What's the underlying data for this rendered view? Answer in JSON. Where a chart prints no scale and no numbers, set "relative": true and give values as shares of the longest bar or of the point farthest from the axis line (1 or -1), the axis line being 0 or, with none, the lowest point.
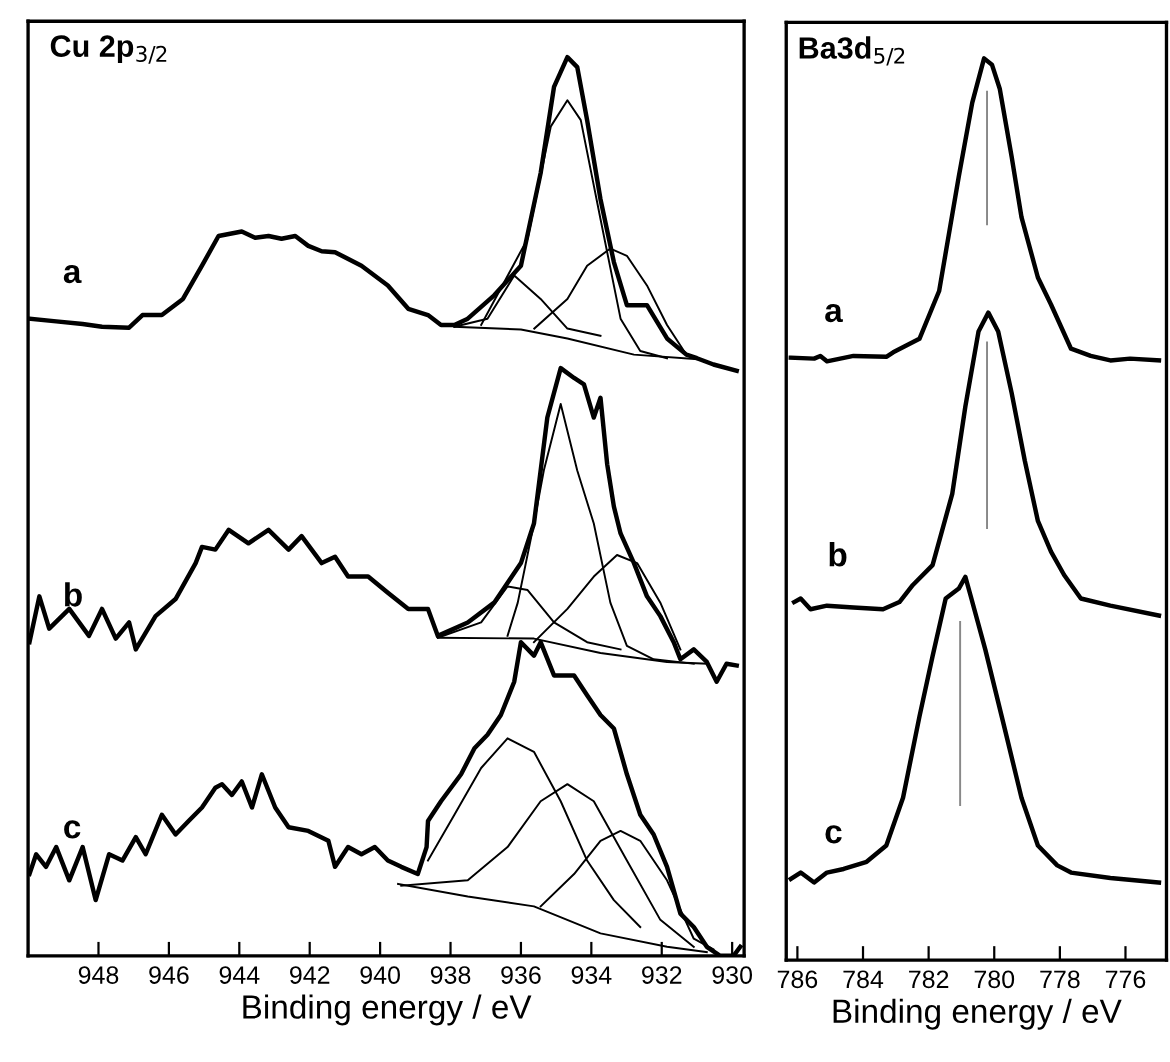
{
  "chart_data": [
    {
      "type": "line",
      "title": "Cu 2p$_{3/2}$",
      "xlabel": "Binding energy / eV",
      "relative": true,
      "xlim": [
        950,
        929.66
      ],
      "xticks": [
        948,
        946,
        944,
        942,
        940,
        938,
        936,
        934,
        932,
        930
      ],
      "tick_labels": "x",
      "grid": false,
      "legend": false,
      "marker": "none",
      "line_style": "solid",
      "series": [
        {
          "name": "a",
          "color": "#000000",
          "x": [
            949.96,
            949.2,
            948.45,
            947.9,
            947.13,
            946.75,
            946.2,
            945.6,
            945.06,
            944.59,
            943.93,
            943.55,
            943.17,
            942.8,
            942.41,
            942.04,
            941.66,
            941.28,
            940.53,
            939.78,
            939.2,
            938.64,
            938.27,
            937.89,
            937.51,
            936.76,
            936.0,
            935.44,
            935.06,
            934.68,
            934.4,
            934.12,
            933.74,
            933.36,
            932.99,
            932.42,
            931.85,
            931.3,
            931.0,
            930.53,
            929.87
          ],
          "values": [
            0.709,
            0.706,
            0.703,
            0.7,
            0.699,
            0.713,
            0.713,
            0.731,
            0.768,
            0.801,
            0.806,
            0.799,
            0.801,
            0.798,
            0.801,
            0.79,
            0.784,
            0.783,
            0.768,
            0.746,
            0.72,
            0.713,
            0.702,
            0.702,
            0.709,
            0.735,
            0.768,
            0.871,
            0.967,
            1.0,
            0.989,
            0.93,
            0.842,
            0.772,
            0.724,
            0.724,
            0.687,
            0.669,
            0.665,
            0.658,
            0.651
          ]
        },
        {
          "color": "#000000",
          "x": [
            937.89,
            936.0,
            934.68,
            932.79,
            931.0
          ],
          "values": [
            0.7,
            0.697,
            0.687,
            0.669,
            0.664
          ]
        },
        {
          "color": "#000000",
          "x": [
            937.89,
            936.95,
            936.19,
            935.44,
            934.68,
            933.74
          ],
          "values": [
            0.7,
            0.709,
            0.757,
            0.731,
            0.698,
            0.69
          ]
        },
        {
          "color": "#000000",
          "x": [
            937.13,
            935.81,
            935.15,
            934.68,
            934.3,
            933.74,
            933.17,
            932.61,
            931.85
          ],
          "values": [
            0.702,
            0.798,
            0.923,
            0.952,
            0.93,
            0.82,
            0.709,
            0.673,
            0.665
          ]
        },
        {
          "color": "#000000",
          "x": [
            935.62,
            934.68,
            934.12,
            933.46,
            932.99,
            932.42,
            931.85,
            931.3
          ],
          "values": [
            0.698,
            0.731,
            0.768,
            0.787,
            0.779,
            0.746,
            0.702,
            0.669
          ]
        },
        {
          "name": "b",
          "color": "#000000",
          "x": [
            949.96,
            949.68,
            949.4,
            948.83,
            948.27,
            947.9,
            947.51,
            947.13,
            946.94,
            946.38,
            945.81,
            945.24,
            945.06,
            944.68,
            944.3,
            943.74,
            943.17,
            942.6,
            942.23,
            941.66,
            941.28,
            940.91,
            940.34,
            939.78,
            939.2,
            938.64,
            938.36,
            937.51,
            936.76,
            936.0,
            935.63,
            935.25,
            934.87,
            934.49,
            934.21,
            933.93,
            933.74,
            933.55,
            933.36,
            933.17,
            932.79,
            932.42,
            932.04,
            931.66,
            931.47,
            931.09,
            930.72,
            930.44,
            930.16,
            929.87
          ],
          "values": [
            0.349,
            0.4,
            0.364,
            0.386,
            0.356,
            0.386,
            0.353,
            0.371,
            0.341,
            0.378,
            0.397,
            0.437,
            0.455,
            0.452,
            0.474,
            0.459,
            0.474,
            0.452,
            0.467,
            0.437,
            0.444,
            0.422,
            0.422,
            0.404,
            0.386,
            0.386,
            0.356,
            0.371,
            0.393,
            0.437,
            0.481,
            0.599,
            0.654,
            0.643,
            0.636,
            0.599,
            0.621,
            0.547,
            0.5,
            0.47,
            0.437,
            0.4,
            0.378,
            0.349,
            0.33,
            0.341,
            0.327,
            0.305,
            0.325,
            0.323
          ]
        },
        {
          "color": "#000000",
          "x": [
            938.36,
            935.63,
            933.74,
            931.85,
            930.72
          ],
          "values": [
            0.354,
            0.353,
            0.337,
            0.327,
            0.325
          ]
        },
        {
          "color": "#000000",
          "x": [
            938.36,
            937.13,
            936.38,
            935.81,
            935.06,
            934.12,
            933.17
          ],
          "values": [
            0.354,
            0.371,
            0.411,
            0.407,
            0.371,
            0.349,
            0.341
          ]
        },
        {
          "color": "#000000",
          "x": [
            936.38,
            936.09,
            935.63,
            935.35,
            934.87,
            934.4,
            933.93,
            933.46,
            932.99,
            932.23,
            931.09
          ],
          "values": [
            0.356,
            0.393,
            0.481,
            0.54,
            0.614,
            0.54,
            0.481,
            0.393,
            0.345,
            0.33,
            0.325
          ]
        },
        {
          "color": "#000000",
          "x": [
            935.63,
            934.68,
            933.93,
            933.27,
            932.7,
            932.04,
            931.47
          ],
          "values": [
            0.349,
            0.386,
            0.422,
            0.446,
            0.437,
            0.393,
            0.341
          ]
        },
        {
          "name": "c",
          "color": "#000000",
          "x": [
            949.96,
            949.77,
            949.49,
            949.2,
            948.83,
            948.45,
            948.08,
            947.7,
            947.32,
            946.94,
            946.66,
            946.2,
            945.81,
            945.44,
            945.06,
            944.68,
            944.49,
            944.21,
            943.93,
            943.64,
            943.36,
            942.98,
            942.6,
            942.04,
            941.47,
            941.28,
            940.91,
            940.53,
            940.15,
            939.78,
            939.4,
            938.93,
            938.68,
            938.64,
            938.27,
            937.7,
            937.32,
            936.95,
            936.57,
            936.19,
            936.0,
            935.63,
            935.44,
            935.06,
            934.49,
            934.12,
            933.74,
            933.36,
            932.99,
            932.61,
            932.23,
            931.85,
            931.47,
            931.09,
            930.72,
            930.34,
            929.96,
            929.77
          ],
          "values": [
            0.091,
            0.113,
            0.099,
            0.121,
            0.084,
            0.121,
            0.062,
            0.113,
            0.106,
            0.132,
            0.113,
            0.157,
            0.135,
            0.15,
            0.165,
            0.187,
            0.191,
            0.179,
            0.194,
            0.165,
            0.202,
            0.165,
            0.143,
            0.139,
            0.128,
            0.099,
            0.121,
            0.113,
            0.121,
            0.106,
            0.099,
            0.091,
            0.121,
            0.15,
            0.172,
            0.202,
            0.231,
            0.246,
            0.268,
            0.305,
            0.349,
            0.334,
            0.349,
            0.312,
            0.312,
            0.29,
            0.268,
            0.253,
            0.202,
            0.157,
            0.135,
            0.099,
            0.047,
            0.032,
            0.01,
            0.0,
            0.0,
            0.01
          ]
        },
        {
          "color": "#000000",
          "x": [
            939.49,
            937.51,
            935.63,
            933.74,
            931.85,
            930.72
          ],
          "values": [
            0.08,
            0.066,
            0.055,
            0.025,
            0.01,
            0.004
          ]
        },
        {
          "color": "#000000",
          "x": [
            938.64,
            937.89,
            937.13,
            936.38,
            935.63,
            934.87,
            934.12,
            933.36,
            932.61
          ],
          "values": [
            0.106,
            0.157,
            0.209,
            0.242,
            0.227,
            0.172,
            0.106,
            0.062,
            0.032
          ]
        },
        {
          "color": "#000000",
          "x": [
            939.4,
            937.51,
            936.38,
            935.44,
            934.68,
            933.93,
            932.99,
            932.04,
            931.09
          ],
          "values": [
            0.078,
            0.084,
            0.121,
            0.172,
            0.191,
            0.172,
            0.106,
            0.04,
            0.01
          ]
        },
        {
          "color": "#000000",
          "x": [
            935.44,
            934.49,
            933.74,
            933.17,
            932.61,
            931.85,
            931.09,
            930.53
          ],
          "values": [
            0.055,
            0.091,
            0.128,
            0.139,
            0.128,
            0.084,
            0.019,
            0.007
          ]
        }
      ]
    },
    {
      "type": "line",
      "title": "Ba3d$_{5/2}$",
      "xlabel": "Binding energy / eV",
      "relative": true,
      "xlim": [
        786.34,
        774.75
      ],
      "xticks": [
        786,
        784,
        782,
        780,
        778,
        776
      ],
      "tick_labels": "x",
      "grid": false,
      "legend": false,
      "marker": "none",
      "line_style": "solid",
      "series": [
        {
          "name": "a",
          "color": "#000000",
          "x": [
            786.2,
            785.49,
            785.3,
            785.1,
            784.29,
            783.29,
            783.08,
            782.28,
            781.68,
            781.08,
            780.67,
            780.31,
            780.07,
            779.83,
            779.47,
            779.17,
            778.67,
            778.27,
            777.66,
            777.06,
            776.46,
            775.86,
            774.98
          ],
          "values": [
            0.668,
            0.667,
            0.67,
            0.664,
            0.67,
            0.669,
            0.674,
            0.689,
            0.742,
            0.869,
            0.951,
            1.0,
            0.993,
            0.966,
            0.891,
            0.824,
            0.757,
            0.727,
            0.678,
            0.67,
            0.665,
            0.667,
            0.665
          ]
        },
        {
          "color": "#888888",
          "x": [
            780.22,
            780.22
          ],
          "values": [
            0.963,
            0.816
          ]
        },
        {
          "name": "b",
          "color": "#000000",
          "x": [
            786.1,
            785.9,
            785.6,
            785.1,
            784.29,
            783.39,
            782.89,
            782.48,
            781.88,
            781.28,
            780.88,
            780.48,
            780.18,
            779.88,
            779.47,
            779.07,
            778.67,
            778.27,
            777.87,
            777.36,
            776.46,
            774.98
          ],
          "values": [
            0.397,
            0.401,
            0.389,
            0.393,
            0.391,
            0.389,
            0.397,
            0.416,
            0.438,
            0.517,
            0.614,
            0.697,
            0.718,
            0.697,
            0.629,
            0.554,
            0.487,
            0.453,
            0.427,
            0.401,
            0.393,
            0.382
          ]
        },
        {
          "color": "#888888",
          "x": [
            780.22,
            780.22
          ],
          "values": [
            0.685,
            0.479
          ]
        },
        {
          "name": "c",
          "color": "#000000",
          "x": [
            786.2,
            785.9,
            785.49,
            785.1,
            784.59,
            783.89,
            783.29,
            782.78,
            782.28,
            781.88,
            781.48,
            781.08,
            780.88,
            780.72,
            780.27,
            779.67,
            779.17,
            778.67,
            778.08,
            777.66,
            776.46,
            774.98
          ],
          "values": [
            0.09,
            0.097,
            0.086,
            0.097,
            0.101,
            0.109,
            0.127,
            0.18,
            0.27,
            0.337,
            0.401,
            0.412,
            0.425,
            0.404,
            0.344,
            0.255,
            0.18,
            0.127,
            0.105,
            0.097,
            0.091,
            0.086
          ]
        },
        {
          "color": "#888888",
          "x": [
            781.04,
            781.04
          ],
          "values": [
            0.375,
            0.172
          ]
        }
      ]
    }
  ]
}
